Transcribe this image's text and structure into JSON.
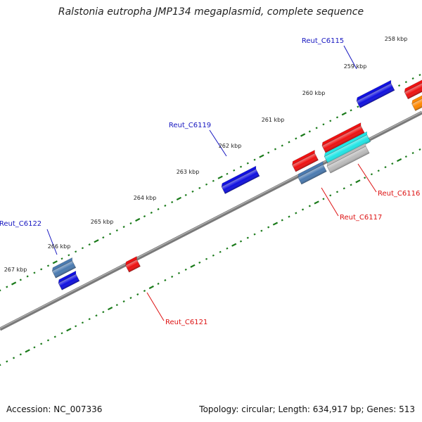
{
  "title": "Ralstonia eutropha JMP134 megaplasmid, complete sequence",
  "footer": {
    "accession": "Accession: NC_007336",
    "summary": "Topology: circular; Length: 634,917 bp; Genes: 513"
  },
  "map": {
    "backbone_color": "#7a7a7a",
    "tick_color": "#1a7a1a",
    "kbp_labels": [
      "258 kbp",
      "259 kbp",
      "260 kbp",
      "261 kbp",
      "262 kbp",
      "263 kbp",
      "264 kbp",
      "265 kbp",
      "266 kbp",
      "267 kbp"
    ],
    "genes": [
      {
        "color": "#1010e0"
      },
      {
        "color": "#1010e0"
      },
      {
        "color": "#4a7ab0"
      },
      {
        "color": "#1010e0"
      },
      {
        "color": "#ee1111"
      },
      {
        "color": "#ee1111"
      },
      {
        "color": "#ff8800"
      },
      {
        "color": "#ee1111"
      },
      {
        "color": "#ee1111"
      },
      {
        "color": "#22e5e5"
      },
      {
        "color": "#4a7ab0"
      },
      {
        "color": "#bbbbbb"
      }
    ],
    "callouts": [
      {
        "text": "Reut_C6115",
        "color": "#1515c0"
      },
      {
        "text": "Reut_C6119",
        "color": "#1515c0"
      },
      {
        "text": "Reut_C6122",
        "color": "#1515c0"
      },
      {
        "text": "Reut_C6116",
        "color": "#dd1111"
      },
      {
        "text": "Reut_C6117",
        "color": "#dd1111"
      },
      {
        "text": "Reut_C6121",
        "color": "#dd1111"
      }
    ]
  }
}
